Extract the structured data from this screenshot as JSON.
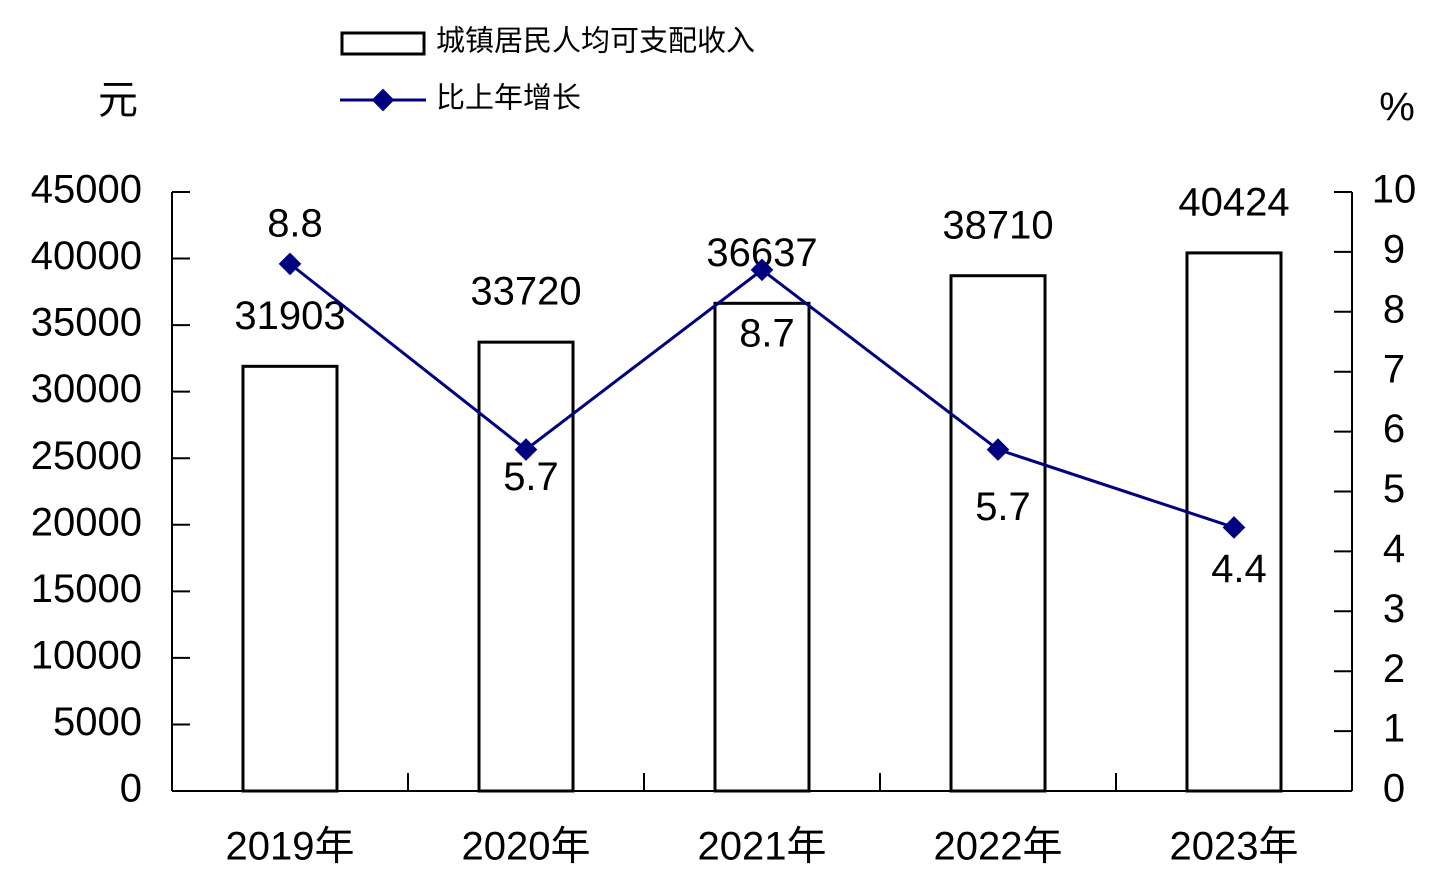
{
  "chart_data": {
    "type": "bar",
    "y_unit": "元",
    "y2_unit": "%",
    "categories": [
      "2019年",
      "2020年",
      "2021年",
      "2022年",
      "2023年"
    ],
    "series": [
      {
        "name": "城镇居民人均可支配收入",
        "type": "bar",
        "color": "#000000",
        "values": [
          31903,
          33720,
          36637,
          38710,
          40424
        ]
      },
      {
        "name": "比上年增长",
        "type": "line",
        "color": "#000080",
        "axis": "y2",
        "values": [
          8.8,
          5.7,
          8.7,
          5.7,
          4.4
        ]
      }
    ],
    "ylim": [
      0,
      45000
    ],
    "yticks": [
      0,
      5000,
      10000,
      15000,
      20000,
      25000,
      30000,
      35000,
      40000,
      45000
    ],
    "y2lim": [
      0,
      10
    ],
    "y2ticks": [
      0,
      1,
      2,
      3,
      4,
      5,
      6,
      7,
      8,
      9,
      10
    ],
    "grid": false
  }
}
